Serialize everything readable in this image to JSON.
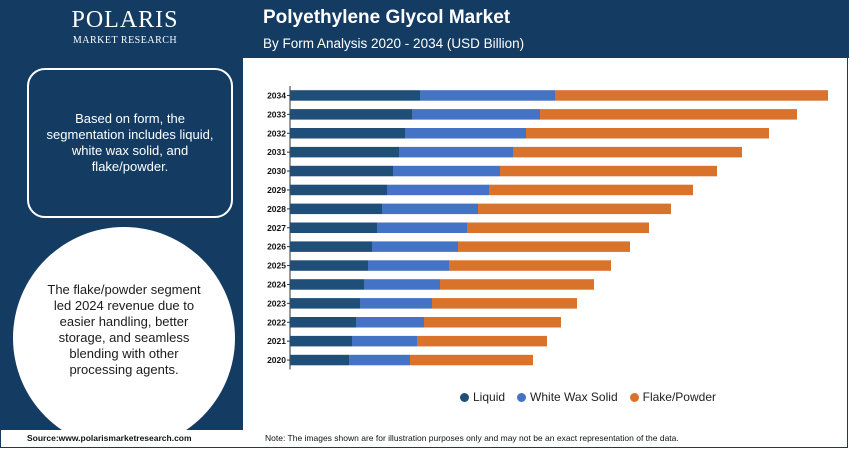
{
  "header": {
    "title": "Polyethylene Glycol Market",
    "subtitle": "By Form Analysis 2020 - 2034 (USD Billion)"
  },
  "logo": {
    "main": "POLARIS",
    "sub": "MARKET RESEARCH"
  },
  "left_panel": {
    "info_text": "Based on form, the segmentation includes liquid, white wax solid, and flake/powder.",
    "highlight_text": "The flake/powder segment led 2024 revenue due to easier handling, better storage, and seamless blending with other processing agents."
  },
  "footer": {
    "source": "Source:www.polarismarketresearch.com",
    "note": "Note: The images shown are for illustration purposes only and may not be an exact representation of the data."
  },
  "colors": {
    "brand": "#143c63",
    "liquid": "#1f4e79",
    "white_wax_solid": "#4472c4",
    "flake_powder": "#d9732c"
  },
  "chart_data": {
    "type": "bar",
    "orientation": "horizontal",
    "stacked": true,
    "categories": [
      "2034",
      "2033",
      "2032",
      "2031",
      "2030",
      "2029",
      "2028",
      "2027",
      "2026",
      "2025",
      "2024",
      "2023",
      "2022",
      "2021",
      "2020"
    ],
    "series": [
      {
        "name": "Liquid",
        "values": [
          130,
          122,
          115,
          109,
          103,
          97,
          92,
          87,
          82,
          78,
          74,
          70,
          66,
          62,
          59
        ]
      },
      {
        "name": "White Wax Solid",
        "values": [
          135,
          128,
          121,
          114,
          107,
          102,
          96,
          90,
          86,
          81,
          76,
          72,
          68,
          65,
          61
        ]
      },
      {
        "name": "Flake/Powder",
        "values": [
          273,
          257,
          243,
          229,
          217,
          204,
          193,
          182,
          172,
          162,
          154,
          145,
          137,
          130,
          123
        ]
      }
    ],
    "legend_position": "bottom",
    "grid": false,
    "xaxis_visible": false
  }
}
